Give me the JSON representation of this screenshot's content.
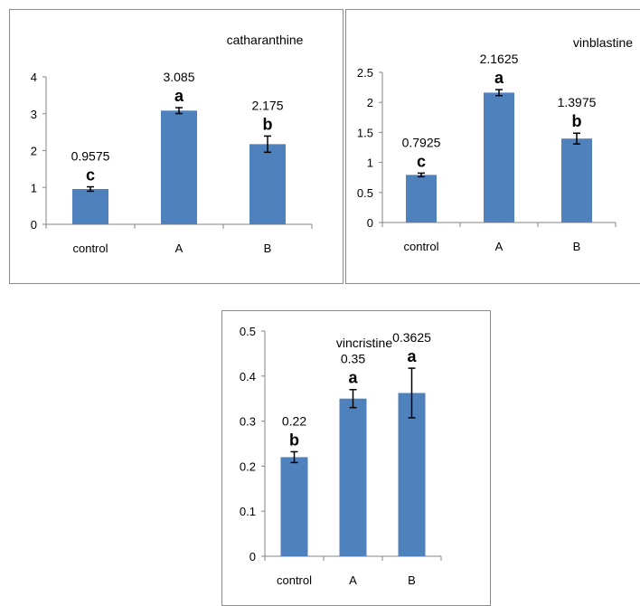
{
  "chart_data": [
    {
      "type": "bar",
      "title": "catharanthine",
      "categories": [
        "control",
        "A",
        "B"
      ],
      "values": [
        0.9575,
        3.085,
        2.175
      ],
      "errors": [
        0.06,
        0.08,
        0.22
      ],
      "value_labels": [
        "0.9575",
        "3.085",
        "2.175"
      ],
      "significance_letters": [
        "c",
        "a",
        "b"
      ],
      "yticks": [
        "0",
        "1",
        "2",
        "3",
        "4"
      ],
      "ylim": [
        0,
        4
      ],
      "xlabel": "",
      "ylabel": "",
      "grid": false,
      "bar_color": "#4f81bd"
    },
    {
      "type": "bar",
      "title": "vinblastine",
      "categories": [
        "control",
        "A",
        "B"
      ],
      "values": [
        0.7925,
        2.1625,
        1.3975
      ],
      "errors": [
        0.03,
        0.05,
        0.09
      ],
      "value_labels": [
        "0.7925",
        "2.1625",
        "1.3975"
      ],
      "significance_letters": [
        "c",
        "a",
        "b"
      ],
      "yticks": [
        "0",
        "0.5",
        "1",
        "1.5",
        "2",
        "2.5"
      ],
      "ylim": [
        0,
        2.5
      ],
      "xlabel": "",
      "ylabel": "",
      "grid": false,
      "bar_color": "#4f81bd"
    },
    {
      "type": "bar",
      "title": "vincristine",
      "categories": [
        "control",
        "A",
        "B"
      ],
      "values": [
        0.22,
        0.35,
        0.3625
      ],
      "errors": [
        0.012,
        0.02,
        0.055
      ],
      "value_labels": [
        "0.22",
        "0.35",
        "0.3625"
      ],
      "significance_letters": [
        "b",
        "a",
        "a"
      ],
      "yticks": [
        "0",
        "0.1",
        "0.2",
        "0.3",
        "0.4",
        "0.5"
      ],
      "ylim": [
        0,
        0.5
      ],
      "xlabel": "",
      "ylabel": "",
      "grid": false,
      "bar_color": "#4f81bd"
    }
  ]
}
